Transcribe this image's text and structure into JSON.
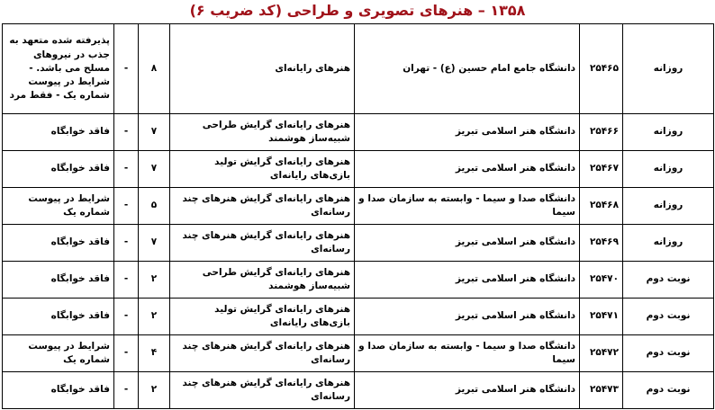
{
  "header": {
    "title": "۱۳۵۸ – هنرهای تصویری و طراحی (کد ضریب ۶)"
  },
  "table": {
    "rows": [
      [
        "روزانه",
        "۲۵۴۶۵",
        "دانشگاه جامع امام حسین (ع) - تهران",
        "هنرهای رایانه‌ای",
        "۸",
        "-",
        "پذیرفته شده متعهد به جذب در نیروهای مسلح می باشد. - شرایط در پیوست شماره یک - فقط مرد"
      ],
      [
        "روزانه",
        "۲۵۴۶۶",
        "دانشگاه هنر اسلامی تبریز",
        "هنرهای رایانه‌ای گرایش طراحی شبیه‌ساز هوشمند",
        "۷",
        "-",
        "فاقد خوابگاه"
      ],
      [
        "روزانه",
        "۲۵۴۶۷",
        "دانشگاه هنر اسلامی تبریز",
        "هنرهای رایانه‌ای گرایش تولید بازی‌های رایانه‌ای",
        "۷",
        "-",
        "فاقد خوابگاه"
      ],
      [
        "روزانه",
        "۲۵۴۶۸",
        "دانشگاه صدا و سیما - وابسته به سازمان صدا و سیما",
        "هنرهای رایانه‌ای گرایش هنرهای چند رسانه‌ای",
        "۵",
        "-",
        "شرایط در پیوست شماره یک"
      ],
      [
        "روزانه",
        "۲۵۴۶۹",
        "دانشگاه هنر اسلامی تبریز",
        "هنرهای رایانه‌ای گرایش هنرهای چند رسانه‌ای",
        "۷",
        "-",
        "فاقد خوابگاه"
      ],
      [
        "نوبت دوم",
        "۲۵۴۷۰",
        "دانشگاه هنر اسلامی تبریز",
        "هنرهای رایانه‌ای گرایش طراحی شبیه‌ساز هوشمند",
        "۲",
        "-",
        "فاقد خوابگاه"
      ],
      [
        "نوبت دوم",
        "۲۵۴۷۱",
        "دانشگاه هنر اسلامی تبریز",
        "هنرهای رایانه‌ای گرایش تولید بازی‌های رایانه‌ای",
        "۲",
        "-",
        "فاقد خوابگاه"
      ],
      [
        "نوبت دوم",
        "۲۵۴۷۲",
        "دانشگاه صدا و سیما - وابسته به سازمان صدا و سیما",
        "هنرهای رایانه‌ای گرایش هنرهای چند رسانه‌ای",
        "۴",
        "-",
        "شرایط در پیوست شماره یک"
      ],
      [
        "نوبت دوم",
        "۲۵۴۷۳",
        "دانشگاه هنر اسلامی تبریز",
        "هنرهای رایانه‌ای گرایش هنرهای چند رسانه‌ای",
        "۲",
        "-",
        "فاقد خوابگاه"
      ]
    ]
  }
}
